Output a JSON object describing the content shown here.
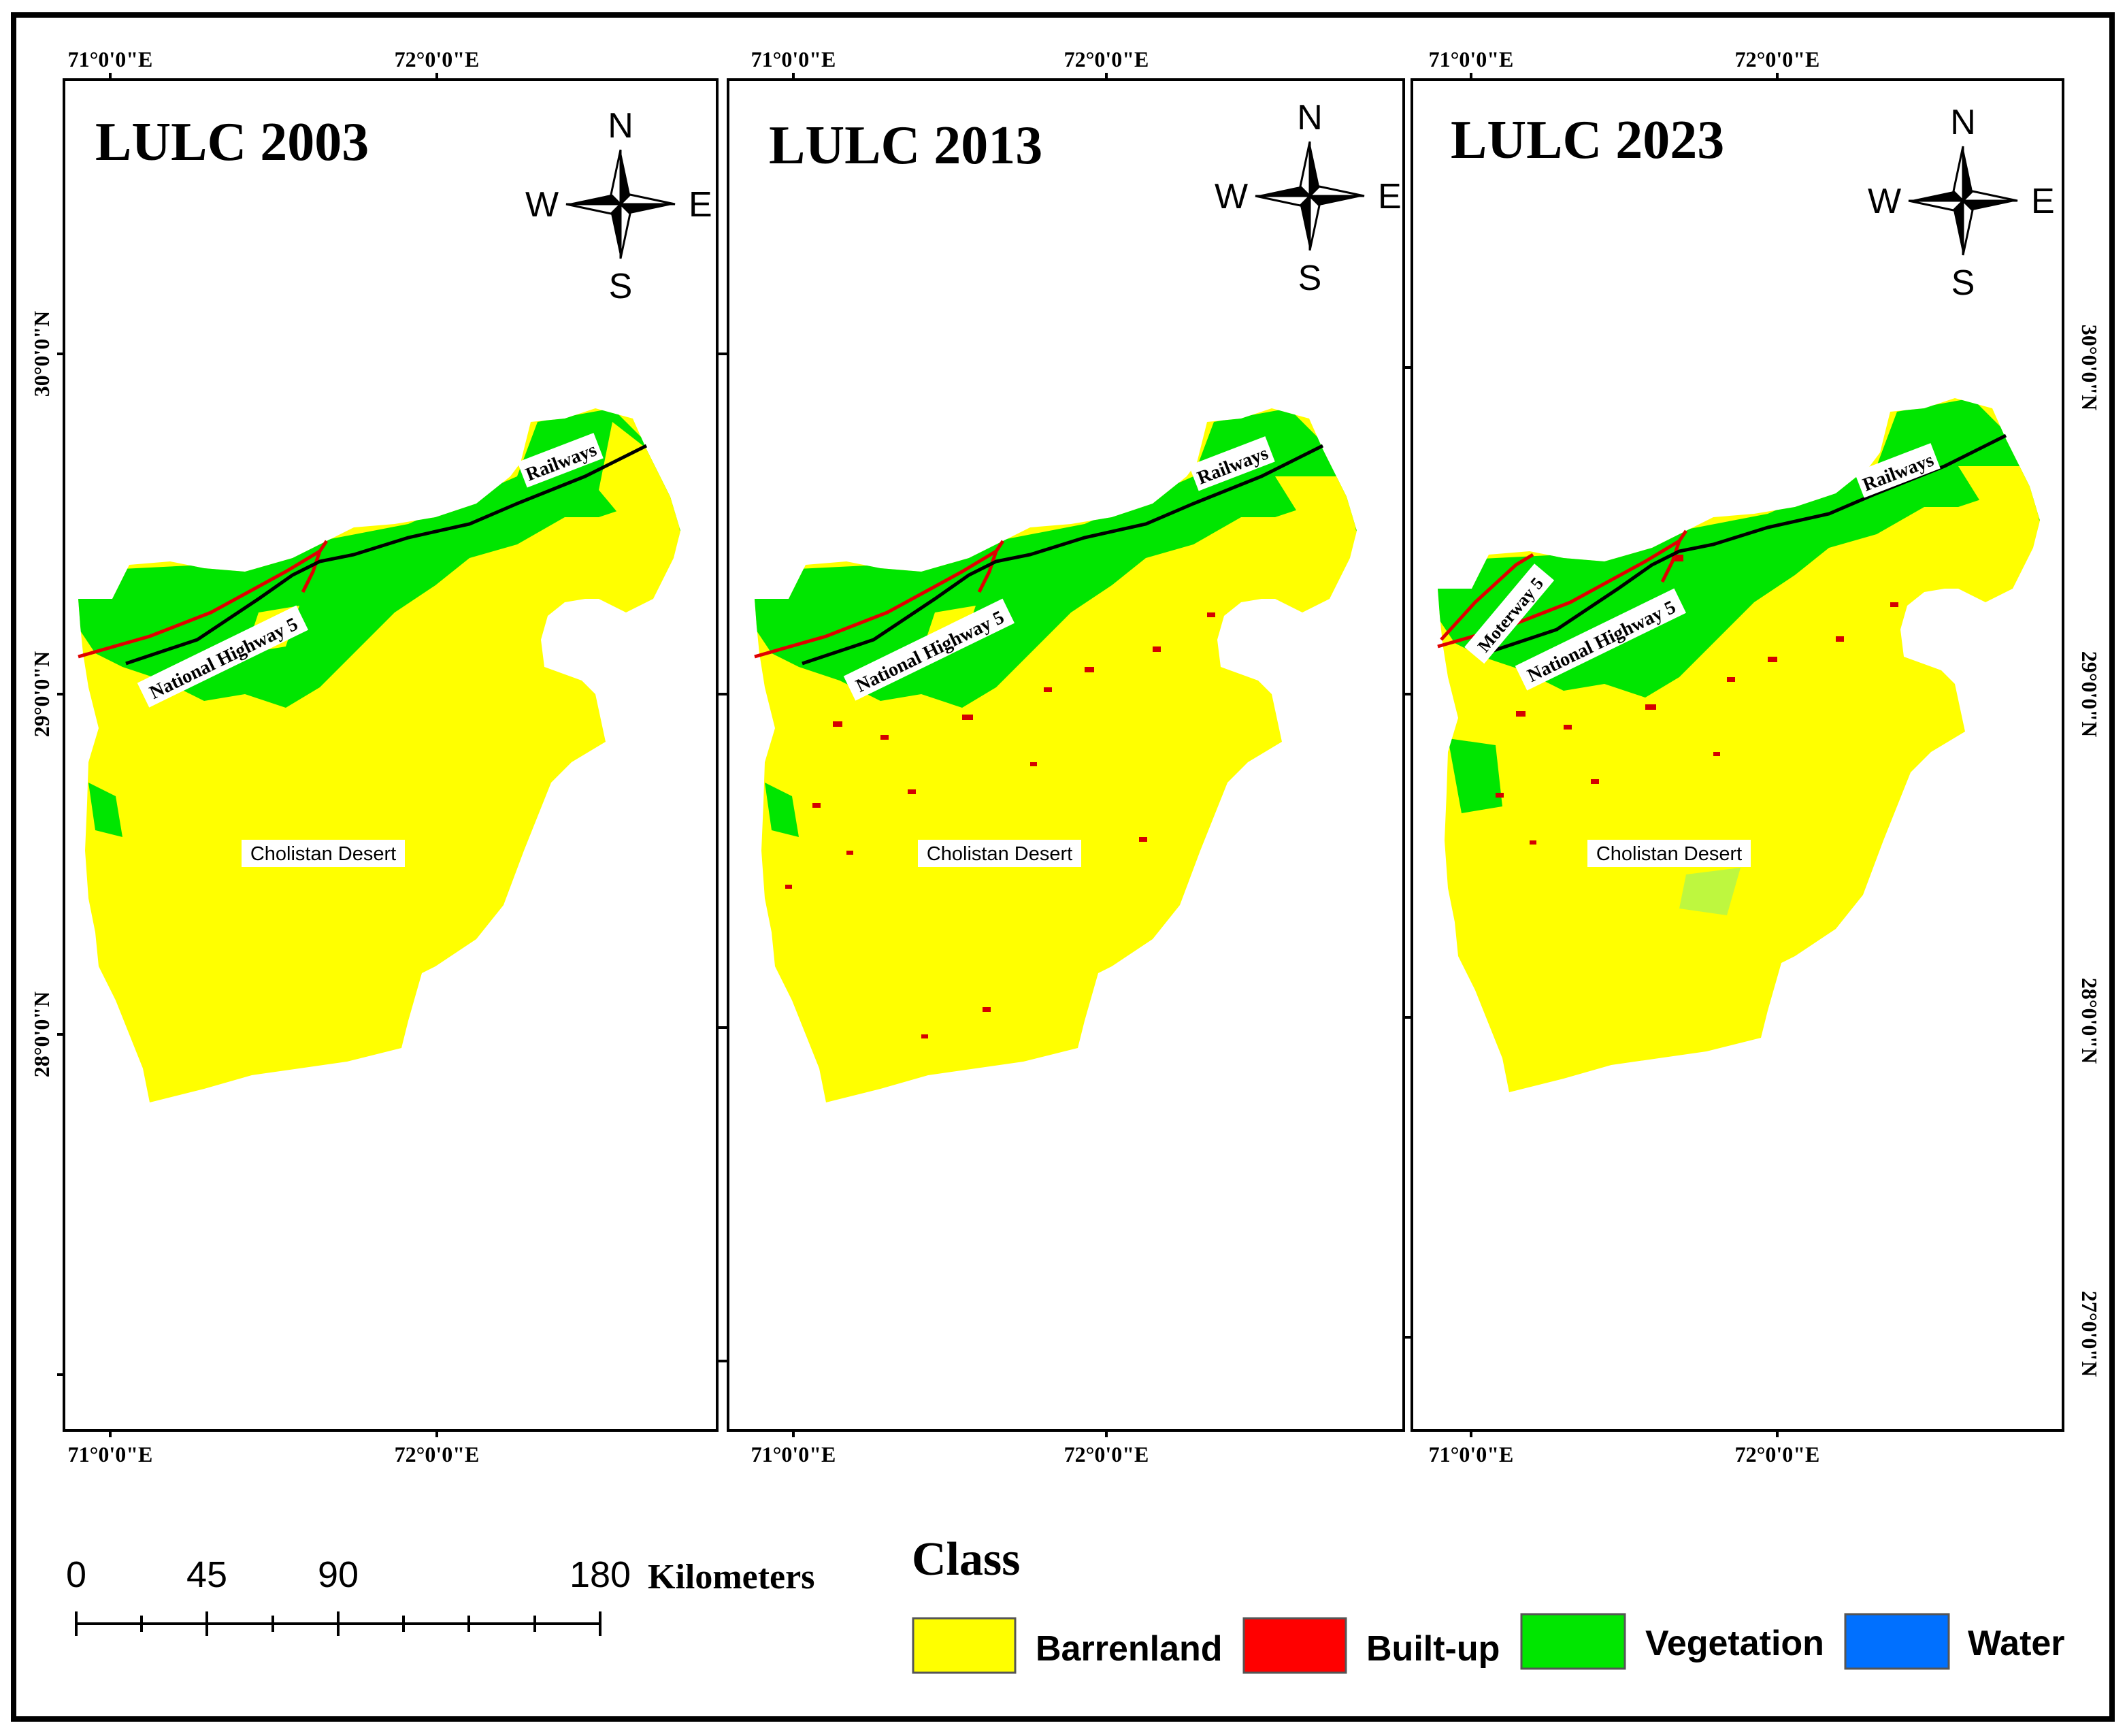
{
  "panels": [
    {
      "title": "LULC 2003",
      "lat_labels": [
        "30°0'0\"N",
        "29°0'0\"N",
        "28°0'0\"N"
      ],
      "lon_labels_top": [
        "71°0'0\"E",
        "72°0'0\"E"
      ],
      "lon_labels_bottom": [
        "71°0'0\"E",
        "72°0'0\"E"
      ],
      "road_labels": [
        "Railways",
        "National Highway 5"
      ],
      "place_label": "Cholistan Desert"
    },
    {
      "title": "LULC 2013",
      "lat_labels": [],
      "lon_labels_top": [
        "71°0'0\"E",
        "72°0'0\"E"
      ],
      "lon_labels_bottom": [
        "71°0'0\"E",
        "72°0'0\"E"
      ],
      "road_labels": [
        "Railways",
        "National Highway 5"
      ],
      "place_label": "Cholistan Desert"
    },
    {
      "title": "LULC 2023",
      "lat_labels": [
        "30°0'0\"N",
        "29°0'0\"N",
        "28°0'0\"N",
        "27°0'0\"N"
      ],
      "lon_labels_top": [
        "71°0'0\"E",
        "72°0'0\"E"
      ],
      "lon_labels_bottom": [
        "71°0'0\"E",
        "72°0'0\"E"
      ],
      "road_labels": [
        "Railways",
        "National Highway 5",
        "Moterway 5"
      ],
      "place_label": "Cholistan Desert"
    }
  ],
  "compass": {
    "n": "N",
    "s": "S",
    "e": "E",
    "w": "W"
  },
  "scale_bar": {
    "ticks": [
      "0",
      "45",
      "90",
      "180"
    ],
    "unit": "Kilometers"
  },
  "legend": {
    "title": "Class",
    "items": [
      {
        "label": "Barrenland",
        "color": "#ffff00"
      },
      {
        "label": "Built-up",
        "color": "#ff0000"
      },
      {
        "label": "Vegetation",
        "color": "#00e600"
      },
      {
        "label": "Water",
        "color": "#0070ff"
      }
    ]
  }
}
